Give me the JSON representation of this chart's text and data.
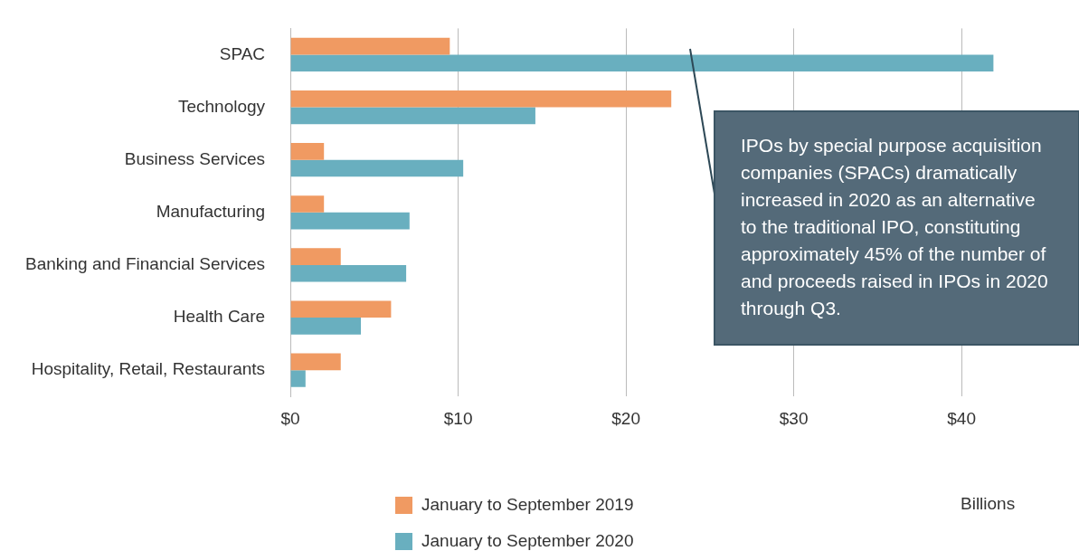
{
  "chart_data": {
    "type": "bar",
    "orientation": "horizontal",
    "xlabel": "Billions",
    "categories": [
      "SPAC",
      "Technology",
      "Business Services",
      "Manufacturing",
      "Banking and Financial Services",
      "Health Care",
      "Hospitality, Retail, Restaurants"
    ],
    "series": [
      {
        "name": "January to September 2019",
        "color": "#f09a62",
        "values": [
          9.5,
          22.7,
          2.0,
          2.0,
          3.0,
          6.0,
          3.0
        ]
      },
      {
        "name": "January to September 2020",
        "color": "#69afbf",
        "values": [
          41.9,
          14.6,
          10.3,
          7.1,
          6.9,
          4.2,
          0.9
        ]
      }
    ],
    "xlim": [
      0,
      47
    ],
    "xticks": [
      {
        "value": 0,
        "label": "$0"
      },
      {
        "value": 10,
        "label": "$10"
      },
      {
        "value": 20,
        "label": "$20"
      },
      {
        "value": 30,
        "label": "$30"
      },
      {
        "value": 40,
        "label": "$40"
      }
    ],
    "grid": "x",
    "legend": "bottom",
    "annotations": [
      "IPOs by special purpose acquisition companies (SPACs) dramatically increased in 2020 as an alternative to the traditional IPO, constituting approximately 45% of the number of and proceeds raised in IPOs in 2020 through Q3."
    ]
  }
}
